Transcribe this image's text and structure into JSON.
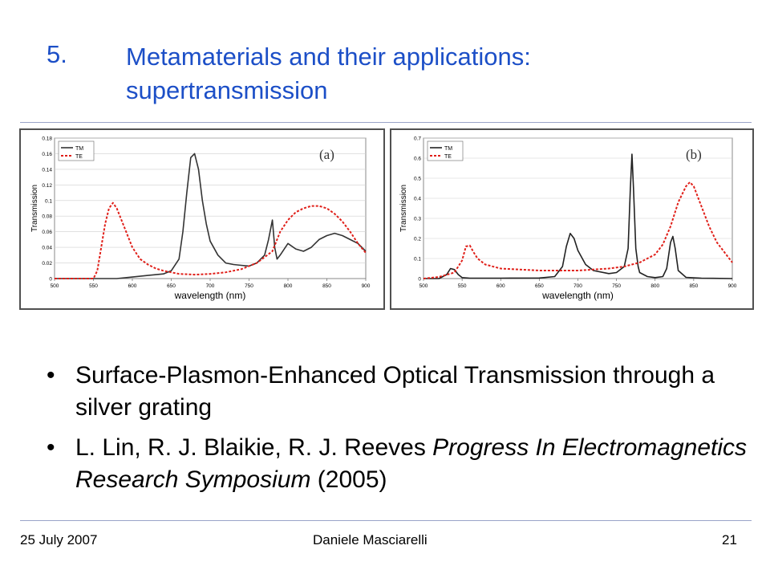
{
  "title": {
    "number": "5.",
    "text": "Metamaterials and their applications: supertransmission"
  },
  "chart_data": [
    {
      "type": "line",
      "label": "(a)",
      "xlabel": "wavelength  (nm)",
      "ylabel": "Transmission",
      "xlim": [
        500,
        900
      ],
      "ylim": [
        0,
        0.18
      ],
      "xticks": [
        "500",
        "550",
        "600",
        "650",
        "700",
        "750",
        "800",
        "850",
        "900"
      ],
      "yticks": [
        "0",
        "0.02",
        "0.04",
        "0.06",
        "0.08",
        "0.1",
        "0.12",
        "0.14",
        "0.16",
        "0.18"
      ],
      "legend_position": "top-left",
      "series": [
        {
          "name": "TM",
          "color": "#333333",
          "dash": "solid",
          "x": [
            500,
            540,
            560,
            580,
            600,
            620,
            640,
            650,
            660,
            665,
            670,
            675,
            680,
            685,
            690,
            695,
            700,
            710,
            720,
            730,
            740,
            750,
            760,
            770,
            775,
            780,
            783,
            786,
            790,
            800,
            810,
            820,
            830,
            840,
            850,
            860,
            870,
            880,
            890,
            900
          ],
          "y": [
            0,
            0,
            0,
            0,
            0.002,
            0.004,
            0.006,
            0.01,
            0.025,
            0.06,
            0.11,
            0.155,
            0.16,
            0.14,
            0.1,
            0.07,
            0.048,
            0.03,
            0.02,
            0.018,
            0.017,
            0.016,
            0.02,
            0.03,
            0.05,
            0.075,
            0.04,
            0.025,
            0.03,
            0.045,
            0.038,
            0.035,
            0.04,
            0.05,
            0.055,
            0.058,
            0.055,
            0.05,
            0.045,
            0.035
          ]
        },
        {
          "name": "TE",
          "color": "#e0201a",
          "dash": "dashed",
          "x": [
            500,
            550,
            555,
            560,
            565,
            570,
            575,
            580,
            590,
            600,
            610,
            620,
            630,
            640,
            660,
            680,
            700,
            720,
            740,
            760,
            780,
            790,
            800,
            810,
            820,
            830,
            840,
            850,
            860,
            870,
            880,
            890,
            900
          ],
          "y": [
            0,
            0,
            0.01,
            0.04,
            0.07,
            0.09,
            0.097,
            0.09,
            0.065,
            0.04,
            0.025,
            0.018,
            0.013,
            0.01,
            0.006,
            0.005,
            0.006,
            0.008,
            0.012,
            0.02,
            0.035,
            0.06,
            0.075,
            0.085,
            0.09,
            0.093,
            0.093,
            0.09,
            0.083,
            0.073,
            0.06,
            0.045,
            0.033
          ]
        }
      ]
    },
    {
      "type": "line",
      "label": "(b)",
      "xlabel": "wavelength  (nm)",
      "ylabel": "Transmission",
      "xlim": [
        500,
        900
      ],
      "ylim": [
        0,
        0.7
      ],
      "xticks": [
        "500",
        "550",
        "600",
        "650",
        "700",
        "750",
        "800",
        "850",
        "900"
      ],
      "yticks": [
        "0",
        "0.1",
        "0.2",
        "0.3",
        "0.4",
        "0.5",
        "0.6",
        "0.7"
      ],
      "legend_position": "top-left",
      "series": [
        {
          "name": "TM",
          "color": "#222222",
          "dash": "solid",
          "x": [
            500,
            520,
            530,
            535,
            540,
            545,
            550,
            560,
            600,
            650,
            670,
            680,
            685,
            690,
            695,
            700,
            710,
            720,
            740,
            750,
            760,
            765,
            768,
            770,
            772,
            775,
            778,
            780,
            790,
            800,
            810,
            815,
            820,
            823,
            826,
            830,
            840,
            860,
            900
          ],
          "y": [
            0,
            0,
            0.02,
            0.05,
            0.045,
            0.02,
            0.005,
            0.002,
            0.002,
            0.003,
            0.01,
            0.06,
            0.16,
            0.225,
            0.2,
            0.14,
            0.07,
            0.04,
            0.025,
            0.03,
            0.06,
            0.15,
            0.45,
            0.62,
            0.45,
            0.15,
            0.06,
            0.03,
            0.01,
            0.005,
            0.01,
            0.05,
            0.18,
            0.21,
            0.15,
            0.04,
            0.006,
            0.002,
            0
          ]
        },
        {
          "name": "TE",
          "color": "#e0201a",
          "dash": "dashed",
          "x": [
            500,
            520,
            540,
            550,
            555,
            560,
            565,
            570,
            580,
            600,
            650,
            700,
            740,
            760,
            780,
            800,
            810,
            820,
            830,
            840,
            845,
            850,
            860,
            870,
            880,
            900
          ],
          "y": [
            0,
            0.008,
            0.03,
            0.09,
            0.16,
            0.165,
            0.13,
            0.1,
            0.07,
            0.05,
            0.04,
            0.04,
            0.05,
            0.06,
            0.08,
            0.12,
            0.17,
            0.26,
            0.38,
            0.46,
            0.48,
            0.46,
            0.36,
            0.26,
            0.18,
            0.08
          ]
        }
      ]
    }
  ],
  "bullets": [
    {
      "parts": [
        {
          "text": "Surface-Plasmon-Enhanced Optical Transmission through a silver grating",
          "italic": false
        }
      ]
    },
    {
      "parts": [
        {
          "text": "L. Lin, R. J. Blaikie, R. J. Reeves ",
          "italic": false
        },
        {
          "text": "Progress In Electromagnetics Research Symposium",
          "italic": true
        },
        {
          "text": " (2005)",
          "italic": false
        }
      ]
    }
  ],
  "bullet_glyph": "•",
  "footer": {
    "date": "25 July 2007",
    "author": "Daniele Masciarelli",
    "page": "21"
  },
  "colors": {
    "title": "#1c4fc7",
    "rule": "#9aa4c8"
  }
}
